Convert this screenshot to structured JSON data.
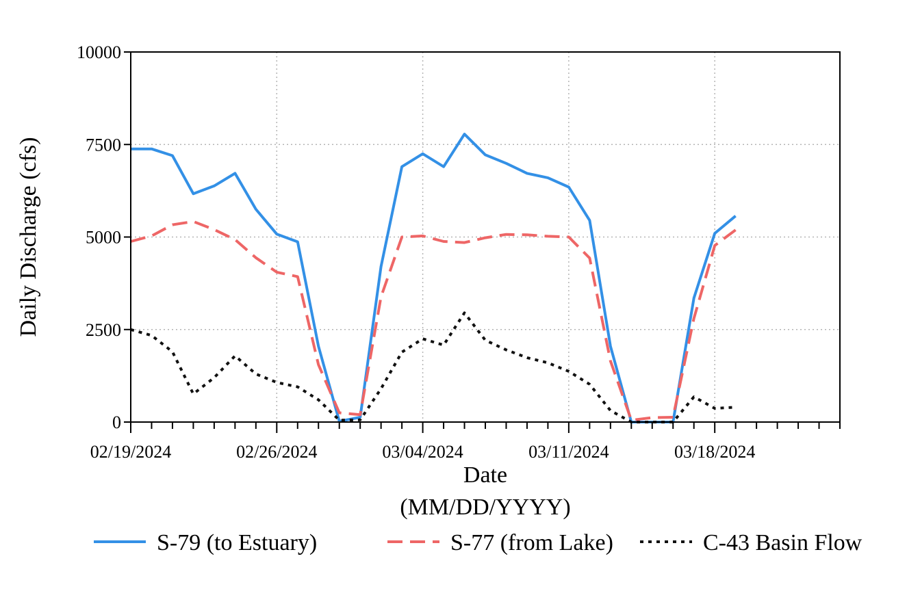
{
  "chart_data": {
    "type": "line",
    "title": "",
    "xlabel": "Date",
    "xlabel_sub": "(MM/DD/YYYY)",
    "ylabel": "Daily Discharge (cfs)",
    "ylim": [
      0,
      10000
    ],
    "yticks": [
      0,
      2500,
      5000,
      7500,
      10000
    ],
    "xlim": [
      "2024-02-19",
      "2024-03-24"
    ],
    "xticks": [
      "02/19/2024",
      "02/26/2024",
      "03/04/2024",
      "03/11/2024",
      "03/18/2024"
    ],
    "grid": true,
    "legend_position": "bottom",
    "dates": [
      "2024-02-19",
      "2024-02-20",
      "2024-02-21",
      "2024-02-22",
      "2024-02-23",
      "2024-02-24",
      "2024-02-25",
      "2024-02-26",
      "2024-02-27",
      "2024-02-28",
      "2024-02-29",
      "2024-03-01",
      "2024-03-02",
      "2024-03-03",
      "2024-03-04",
      "2024-03-05",
      "2024-03-06",
      "2024-03-07",
      "2024-03-08",
      "2024-03-09",
      "2024-03-10",
      "2024-03-11",
      "2024-03-12",
      "2024-03-13",
      "2024-03-14",
      "2024-03-15",
      "2024-03-16",
      "2024-03-17",
      "2024-03-18",
      "2024-03-19"
    ],
    "series": [
      {
        "name": "S-79 (to Estuary)",
        "color": "#3390e6",
        "style": "solid",
        "values": [
          7380,
          7380,
          7200,
          6170,
          6380,
          6720,
          5750,
          5080,
          4870,
          2050,
          20,
          130,
          4200,
          6900,
          7250,
          6900,
          7780,
          7220,
          6990,
          6720,
          6600,
          6350,
          5450,
          2050,
          0,
          0,
          0,
          3350,
          5100,
          5570
        ]
      },
      {
        "name": "S-77 (from Lake)",
        "color": "#ee6666",
        "style": "dashed",
        "values": [
          4880,
          5030,
          5330,
          5420,
          5200,
          4930,
          4440,
          4050,
          3930,
          1550,
          250,
          200,
          3380,
          5000,
          5030,
          4880,
          4850,
          4980,
          5070,
          5060,
          5020,
          5000,
          4430,
          1650,
          50,
          120,
          130,
          2800,
          4770,
          5190
        ]
      },
      {
        "name": "C-43 Basin Flow",
        "color": "#111111",
        "style": "dotted",
        "values": [
          2500,
          2340,
          1900,
          760,
          1200,
          1790,
          1300,
          1070,
          950,
          600,
          50,
          60,
          900,
          1890,
          2250,
          2080,
          2950,
          2210,
          1950,
          1740,
          1600,
          1370,
          1020,
          310,
          0,
          0,
          0,
          680,
          370,
          400
        ]
      }
    ]
  }
}
